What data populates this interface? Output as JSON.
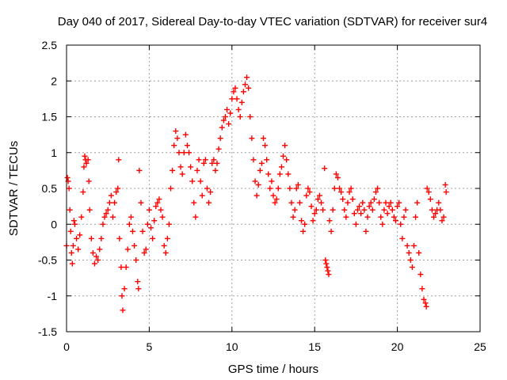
{
  "chart_data": {
    "type": "scatter",
    "title": "Day 040 of 2017, Sidereal Day-to-day VTEC variation (SDTVAR) for receiver sur4",
    "xlabel": "GPS time / hours",
    "ylabel": "SDTVAR / TECUs",
    "xlim": [
      0,
      25
    ],
    "ylim": [
      -1.5,
      2.5
    ],
    "xticks": [
      "0",
      "5",
      "10",
      "15",
      "20",
      "25"
    ],
    "yticks": [
      "-1.5",
      "-1",
      "-0.5",
      "0",
      "0.5",
      "1",
      "1.5",
      "2",
      "2.5"
    ],
    "xtick_values": [
      0,
      5,
      10,
      15,
      20,
      25
    ],
    "ytick_values": [
      -1.5,
      -1,
      -0.5,
      0,
      0.5,
      1,
      1.5,
      2,
      2.5
    ],
    "grid": true,
    "marker": "+",
    "color": "#ff0000",
    "series": [
      {
        "name": "SDTVAR",
        "points": [
          [
            0.0,
            -0.3
          ],
          [
            0.05,
            0.65
          ],
          [
            0.1,
            0.6
          ],
          [
            0.15,
            0.5
          ],
          [
            0.2,
            0.2
          ],
          [
            0.25,
            -0.1
          ],
          [
            0.3,
            -0.4
          ],
          [
            0.35,
            -0.55
          ],
          [
            0.4,
            -0.3
          ],
          [
            0.45,
            0.05
          ],
          [
            0.5,
            0.0
          ],
          [
            0.6,
            -0.2
          ],
          [
            0.7,
            -0.35
          ],
          [
            0.8,
            -0.15
          ],
          [
            0.9,
            0.1
          ],
          [
            1.0,
            0.45
          ],
          [
            1.05,
            0.8
          ],
          [
            1.1,
            0.95
          ],
          [
            1.15,
            0.9
          ],
          [
            1.2,
            0.85
          ],
          [
            1.3,
            0.9
          ],
          [
            1.35,
            0.6
          ],
          [
            1.4,
            0.2
          ],
          [
            1.5,
            -0.2
          ],
          [
            1.6,
            -0.4
          ],
          [
            1.7,
            -0.55
          ],
          [
            1.8,
            -0.45
          ],
          [
            1.9,
            -0.5
          ],
          [
            2.0,
            -0.35
          ],
          [
            2.1,
            -0.2
          ],
          [
            2.2,
            0.0
          ],
          [
            2.3,
            0.1
          ],
          [
            2.4,
            0.15
          ],
          [
            2.5,
            0.2
          ],
          [
            2.6,
            0.3
          ],
          [
            2.7,
            0.4
          ],
          [
            2.8,
            0.1
          ],
          [
            2.9,
            0.3
          ],
          [
            3.0,
            0.45
          ],
          [
            3.1,
            0.5
          ],
          [
            3.15,
            0.9
          ],
          [
            3.2,
            -0.2
          ],
          [
            3.3,
            -0.6
          ],
          [
            3.35,
            -1.0
          ],
          [
            3.4,
            -1.2
          ],
          [
            3.5,
            -0.9
          ],
          [
            3.6,
            -0.6
          ],
          [
            3.7,
            -0.35
          ],
          [
            3.8,
            0.0
          ],
          [
            3.9,
            0.1
          ],
          [
            4.0,
            -0.1
          ],
          [
            4.1,
            -0.3
          ],
          [
            4.2,
            -0.5
          ],
          [
            4.3,
            -0.8
          ],
          [
            4.35,
            -0.9
          ],
          [
            4.4,
            0.75
          ],
          [
            4.5,
            0.3
          ],
          [
            4.6,
            -0.1
          ],
          [
            4.7,
            -0.4
          ],
          [
            4.8,
            -0.35
          ],
          [
            4.9,
            0.0
          ],
          [
            5.0,
            0.2
          ],
          [
            5.1,
            -0.05
          ],
          [
            5.2,
            -0.2
          ],
          [
            5.3,
            0.05
          ],
          [
            5.4,
            0.25
          ],
          [
            5.5,
            0.3
          ],
          [
            5.6,
            0.35
          ],
          [
            5.7,
            0.2
          ],
          [
            5.8,
            0.1
          ],
          [
            5.9,
            -0.3
          ],
          [
            6.0,
            -0.4
          ],
          [
            6.1,
            -0.2
          ],
          [
            6.2,
            0.0
          ],
          [
            6.3,
            0.5
          ],
          [
            6.4,
            0.75
          ],
          [
            6.5,
            1.1
          ],
          [
            6.6,
            1.3
          ],
          [
            6.7,
            1.2
          ],
          [
            6.8,
            1.0
          ],
          [
            6.9,
            0.8
          ],
          [
            7.0,
            0.7
          ],
          [
            7.1,
            1.0
          ],
          [
            7.2,
            1.25
          ],
          [
            7.3,
            1.1
          ],
          [
            7.4,
            1.0
          ],
          [
            7.5,
            0.8
          ],
          [
            7.6,
            0.6
          ],
          [
            7.7,
            0.3
          ],
          [
            7.8,
            0.1
          ],
          [
            7.9,
            0.75
          ],
          [
            8.0,
            0.9
          ],
          [
            8.1,
            0.6
          ],
          [
            8.2,
            0.4
          ],
          [
            8.3,
            0.85
          ],
          [
            8.4,
            0.9
          ],
          [
            8.5,
            0.5
          ],
          [
            8.6,
            0.3
          ],
          [
            8.7,
            0.45
          ],
          [
            8.8,
            0.85
          ],
          [
            8.9,
            0.9
          ],
          [
            9.0,
            0.75
          ],
          [
            9.1,
            0.85
          ],
          [
            9.2,
            1.05
          ],
          [
            9.3,
            1.2
          ],
          [
            9.4,
            1.35
          ],
          [
            9.5,
            1.45
          ],
          [
            9.6,
            1.5
          ],
          [
            9.7,
            1.6
          ],
          [
            9.8,
            1.4
          ],
          [
            9.9,
            1.55
          ],
          [
            10.0,
            1.75
          ],
          [
            10.1,
            1.85
          ],
          [
            10.2,
            1.9
          ],
          [
            10.3,
            1.75
          ],
          [
            10.4,
            1.6
          ],
          [
            10.5,
            1.5
          ],
          [
            10.6,
            1.7
          ],
          [
            10.7,
            1.85
          ],
          [
            10.8,
            1.95
          ],
          [
            10.9,
            2.05
          ],
          [
            11.0,
            1.9
          ],
          [
            11.1,
            1.5
          ],
          [
            11.2,
            1.2
          ],
          [
            11.3,
            0.9
          ],
          [
            11.4,
            0.6
          ],
          [
            11.5,
            0.4
          ],
          [
            11.6,
            0.55
          ],
          [
            11.7,
            0.75
          ],
          [
            11.8,
            0.85
          ],
          [
            11.9,
            1.2
          ],
          [
            12.0,
            1.1
          ],
          [
            12.1,
            0.9
          ],
          [
            12.2,
            0.7
          ],
          [
            12.3,
            0.5
          ],
          [
            12.4,
            0.6
          ],
          [
            12.5,
            0.4
          ],
          [
            12.6,
            0.3
          ],
          [
            12.7,
            0.35
          ],
          [
            12.8,
            0.5
          ],
          [
            12.9,
            0.7
          ],
          [
            13.0,
            0.8
          ],
          [
            13.1,
            0.95
          ],
          [
            13.2,
            1.1
          ],
          [
            13.3,
            0.9
          ],
          [
            13.4,
            0.7
          ],
          [
            13.5,
            0.5
          ],
          [
            13.6,
            0.3
          ],
          [
            13.7,
            0.1
          ],
          [
            13.8,
            0.2
          ],
          [
            13.9,
            0.5
          ],
          [
            14.0,
            0.55
          ],
          [
            14.1,
            0.3
          ],
          [
            14.2,
            0.05
          ],
          [
            14.3,
            -0.1
          ],
          [
            14.4,
            0.0
          ],
          [
            14.5,
            0.4
          ],
          [
            14.6,
            0.5
          ],
          [
            14.7,
            0.45
          ],
          [
            14.8,
            0.25
          ],
          [
            14.9,
            0.05
          ],
          [
            15.0,
            0.15
          ],
          [
            15.1,
            0.2
          ],
          [
            15.2,
            0.35
          ],
          [
            15.3,
            0.4
          ],
          [
            15.4,
            0.3
          ],
          [
            15.5,
            0.2
          ],
          [
            15.6,
            0.78
          ],
          [
            15.65,
            -0.5
          ],
          [
            15.7,
            -0.55
          ],
          [
            15.75,
            -0.6
          ],
          [
            15.8,
            -0.65
          ],
          [
            15.85,
            -0.7
          ],
          [
            15.9,
            0.05
          ],
          [
            16.0,
            -0.1
          ],
          [
            16.1,
            0.2
          ],
          [
            16.2,
            0.5
          ],
          [
            16.3,
            0.7
          ],
          [
            16.4,
            0.65
          ],
          [
            16.5,
            0.5
          ],
          [
            16.6,
            0.45
          ],
          [
            16.7,
            0.35
          ],
          [
            16.8,
            0.2
          ],
          [
            16.9,
            0.1
          ],
          [
            17.0,
            0.3
          ],
          [
            17.1,
            0.45
          ],
          [
            17.2,
            0.5
          ],
          [
            17.3,
            0.35
          ],
          [
            17.4,
            0.15
          ],
          [
            17.5,
            0.0
          ],
          [
            17.6,
            0.2
          ],
          [
            17.7,
            0.25
          ],
          [
            17.8,
            0.15
          ],
          [
            17.9,
            0.3
          ],
          [
            18.0,
            0.2
          ],
          [
            18.1,
            -0.1
          ],
          [
            18.2,
            0.1
          ],
          [
            18.3,
            0.25
          ],
          [
            18.4,
            0.3
          ],
          [
            18.5,
            0.2
          ],
          [
            18.6,
            0.35
          ],
          [
            18.7,
            0.45
          ],
          [
            18.8,
            0.5
          ],
          [
            18.9,
            0.3
          ],
          [
            19.0,
            0.1
          ],
          [
            19.1,
            0.0
          ],
          [
            19.2,
            0.2
          ],
          [
            19.3,
            0.3
          ],
          [
            19.4,
            0.15
          ],
          [
            19.5,
            0.25
          ],
          [
            19.6,
            0.3
          ],
          [
            19.7,
            0.2
          ],
          [
            19.8,
            0.1
          ],
          [
            19.9,
            0.05
          ],
          [
            20.0,
            0.25
          ],
          [
            20.1,
            0.3
          ],
          [
            20.2,
            0.0
          ],
          [
            20.3,
            -0.2
          ],
          [
            20.4,
            0.1
          ],
          [
            20.5,
            0.2
          ],
          [
            20.6,
            -0.3
          ],
          [
            20.7,
            -0.4
          ],
          [
            20.8,
            -0.5
          ],
          [
            20.9,
            -0.6
          ],
          [
            21.0,
            -0.3
          ],
          [
            21.1,
            0.1
          ],
          [
            21.2,
            0.3
          ],
          [
            21.3,
            -0.4
          ],
          [
            21.4,
            -0.7
          ],
          [
            21.5,
            -0.9
          ],
          [
            21.6,
            -1.05
          ],
          [
            21.7,
            -1.1
          ],
          [
            21.75,
            -1.15
          ],
          [
            21.8,
            0.5
          ],
          [
            21.9,
            0.45
          ],
          [
            22.0,
            0.35
          ],
          [
            22.1,
            0.2
          ],
          [
            22.2,
            0.1
          ],
          [
            22.3,
            0.15
          ],
          [
            22.4,
            0.2
          ],
          [
            22.5,
            0.3
          ],
          [
            22.6,
            0.2
          ],
          [
            22.7,
            0.05
          ],
          [
            22.8,
            0.1
          ],
          [
            22.9,
            0.55
          ],
          [
            22.95,
            0.45
          ]
        ]
      }
    ]
  }
}
